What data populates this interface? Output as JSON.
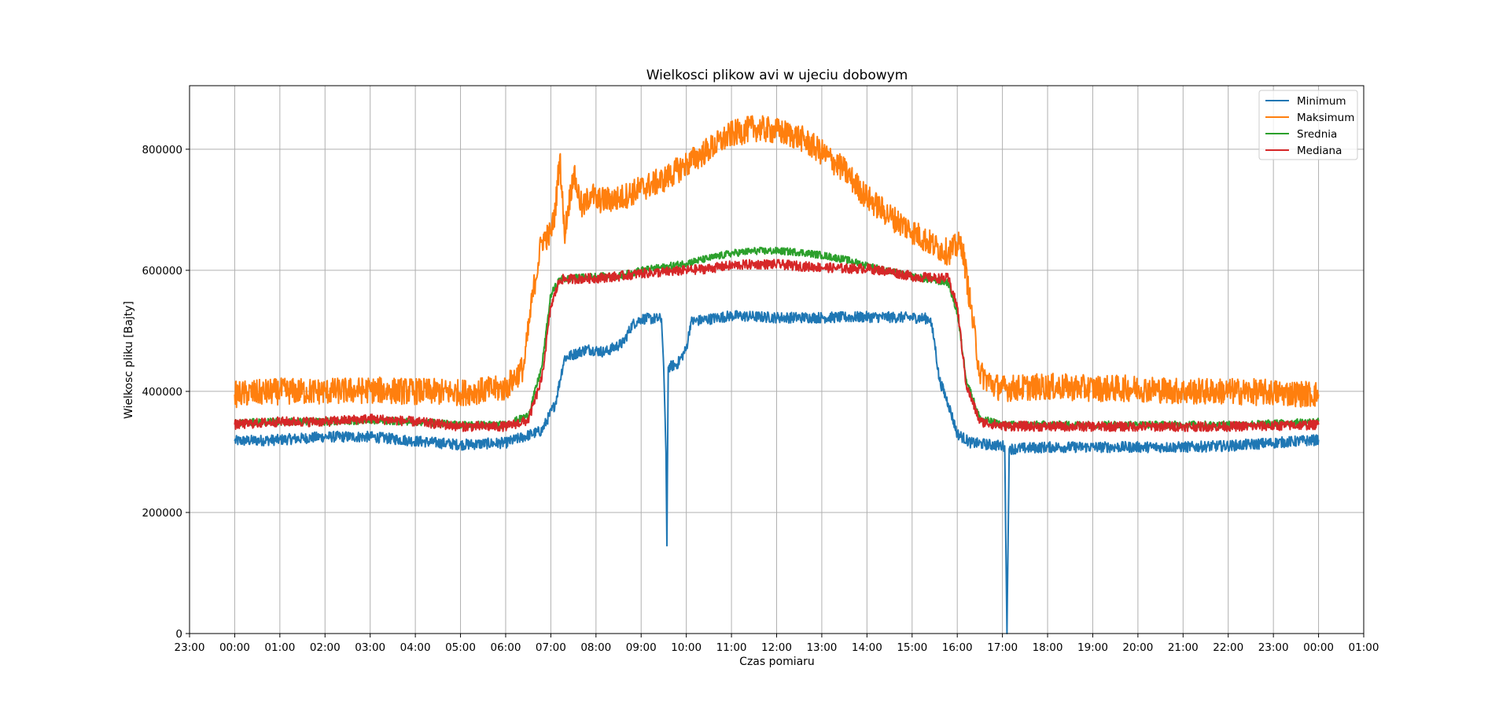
{
  "chart_data": {
    "type": "line",
    "title": "Wielkosci plikow avi w ujeciu dobowym",
    "xlabel": "Czas pomiaru",
    "ylabel": "Wielkosc pliku [Bajty]",
    "x_unit": "hours since 00:00",
    "xlim": [
      -1,
      25
    ],
    "ylim": [
      0,
      905000
    ],
    "grid": true,
    "legend_position": "top-right",
    "x_ticks": [
      {
        "value": -1,
        "label": "23:00"
      },
      {
        "value": 0,
        "label": "00:00"
      },
      {
        "value": 1,
        "label": "01:00"
      },
      {
        "value": 2,
        "label": "02:00"
      },
      {
        "value": 3,
        "label": "03:00"
      },
      {
        "value": 4,
        "label": "04:00"
      },
      {
        "value": 5,
        "label": "05:00"
      },
      {
        "value": 6,
        "label": "06:00"
      },
      {
        "value": 7,
        "label": "07:00"
      },
      {
        "value": 8,
        "label": "08:00"
      },
      {
        "value": 9,
        "label": "09:00"
      },
      {
        "value": 10,
        "label": "10:00"
      },
      {
        "value": 11,
        "label": "11:00"
      },
      {
        "value": 12,
        "label": "12:00"
      },
      {
        "value": 13,
        "label": "13:00"
      },
      {
        "value": 14,
        "label": "14:00"
      },
      {
        "value": 15,
        "label": "15:00"
      },
      {
        "value": 16,
        "label": "16:00"
      },
      {
        "value": 17,
        "label": "17:00"
      },
      {
        "value": 18,
        "label": "18:00"
      },
      {
        "value": 19,
        "label": "19:00"
      },
      {
        "value": 20,
        "label": "20:00"
      },
      {
        "value": 21,
        "label": "21:00"
      },
      {
        "value": 22,
        "label": "22:00"
      },
      {
        "value": 23,
        "label": "23:00"
      },
      {
        "value": 24,
        "label": "00:00"
      },
      {
        "value": 25,
        "label": "01:00"
      }
    ],
    "y_ticks": [
      {
        "value": 0,
        "label": "0"
      },
      {
        "value": 200000,
        "label": "200000"
      },
      {
        "value": 400000,
        "label": "400000"
      },
      {
        "value": 600000,
        "label": "600000"
      },
      {
        "value": 800000,
        "label": "800000"
      }
    ],
    "series": [
      {
        "name": "Minimum",
        "color": "#1f77b4",
        "noise": 9000,
        "points": [
          [
            0,
            318000
          ],
          [
            1,
            320000
          ],
          [
            2,
            325000
          ],
          [
            3,
            325000
          ],
          [
            4,
            318000
          ],
          [
            5,
            312000
          ],
          [
            6,
            315000
          ],
          [
            6.8,
            335000
          ],
          [
            7.1,
            380000
          ],
          [
            7.3,
            455000
          ],
          [
            7.8,
            470000
          ],
          [
            8.2,
            465000
          ],
          [
            8.6,
            480000
          ],
          [
            8.8,
            510000
          ],
          [
            9.0,
            520000
          ],
          [
            9.45,
            520000
          ],
          [
            9.5,
            440000
          ],
          [
            9.55,
            300000
          ],
          [
            9.57,
            145000
          ],
          [
            9.6,
            440000
          ],
          [
            9.8,
            445000
          ],
          [
            10.0,
            470000
          ],
          [
            10.1,
            515000
          ],
          [
            11,
            525000
          ],
          [
            12,
            522000
          ],
          [
            13,
            522000
          ],
          [
            14,
            523000
          ],
          [
            15,
            522000
          ],
          [
            15.4,
            520000
          ],
          [
            15.5,
            480000
          ],
          [
            15.6,
            420000
          ],
          [
            15.8,
            380000
          ],
          [
            16.0,
            330000
          ],
          [
            16.3,
            315000
          ],
          [
            17.0,
            310000
          ],
          [
            17.05,
            310000
          ],
          [
            17.1,
            0
          ],
          [
            17.15,
            305000
          ],
          [
            18,
            308000
          ],
          [
            19,
            308000
          ],
          [
            20,
            308000
          ],
          [
            21,
            308000
          ],
          [
            22,
            310000
          ],
          [
            23,
            315000
          ],
          [
            24,
            320000
          ]
        ]
      },
      {
        "name": "Maksimum",
        "color": "#ff7f0e",
        "noise": 22000,
        "points": [
          [
            0,
            395000
          ],
          [
            1,
            400000
          ],
          [
            2,
            400000
          ],
          [
            3,
            402000
          ],
          [
            4,
            400000
          ],
          [
            5,
            398000
          ],
          [
            6,
            405000
          ],
          [
            6.4,
            440000
          ],
          [
            6.6,
            560000
          ],
          [
            6.8,
            650000
          ],
          [
            7.0,
            660000
          ],
          [
            7.1,
            700000
          ],
          [
            7.2,
            790000
          ],
          [
            7.3,
            660000
          ],
          [
            7.5,
            760000
          ],
          [
            7.7,
            700000
          ],
          [
            7.9,
            730000
          ],
          [
            8.0,
            715000
          ],
          [
            8.5,
            718000
          ],
          [
            9.0,
            735000
          ],
          [
            9.5,
            750000
          ],
          [
            10,
            775000
          ],
          [
            10.5,
            800000
          ],
          [
            11,
            825000
          ],
          [
            11.5,
            835000
          ],
          [
            12,
            830000
          ],
          [
            12.5,
            820000
          ],
          [
            13,
            795000
          ],
          [
            13.5,
            765000
          ],
          [
            14,
            720000
          ],
          [
            14.5,
            690000
          ],
          [
            15,
            665000
          ],
          [
            15.5,
            640000
          ],
          [
            15.8,
            630000
          ],
          [
            16.1,
            645000
          ],
          [
            16.3,
            540000
          ],
          [
            16.5,
            430000
          ],
          [
            16.8,
            410000
          ],
          [
            17,
            405000
          ],
          [
            18,
            408000
          ],
          [
            19,
            405000
          ],
          [
            20,
            405000
          ],
          [
            21,
            400000
          ],
          [
            22,
            400000
          ],
          [
            23,
            398000
          ],
          [
            24,
            395000
          ]
        ]
      },
      {
        "name": "Srednia",
        "color": "#2ca02c",
        "noise": 6000,
        "points": [
          [
            0,
            348000
          ],
          [
            1,
            350000
          ],
          [
            2,
            350000
          ],
          [
            3,
            352000
          ],
          [
            4,
            350000
          ],
          [
            5,
            345000
          ],
          [
            6,
            345000
          ],
          [
            6.5,
            360000
          ],
          [
            6.8,
            440000
          ],
          [
            7.0,
            560000
          ],
          [
            7.2,
            585000
          ],
          [
            8,
            590000
          ],
          [
            8.5,
            590000
          ],
          [
            9,
            600000
          ],
          [
            9.5,
            605000
          ],
          [
            10,
            612000
          ],
          [
            10.5,
            620000
          ],
          [
            11,
            628000
          ],
          [
            11.5,
            632000
          ],
          [
            12,
            632000
          ],
          [
            12.5,
            630000
          ],
          [
            13,
            625000
          ],
          [
            13.5,
            618000
          ],
          [
            14,
            608000
          ],
          [
            14.5,
            598000
          ],
          [
            15,
            590000
          ],
          [
            15.5,
            583000
          ],
          [
            15.8,
            580000
          ],
          [
            16.0,
            530000
          ],
          [
            16.2,
            420000
          ],
          [
            16.5,
            355000
          ],
          [
            17,
            345000
          ],
          [
            18,
            345000
          ],
          [
            19,
            345000
          ],
          [
            20,
            345000
          ],
          [
            21,
            345000
          ],
          [
            22,
            345000
          ],
          [
            23,
            347000
          ],
          [
            24,
            350000
          ]
        ]
      },
      {
        "name": "Mediana",
        "color": "#d62728",
        "noise": 8000,
        "points": [
          [
            0,
            345000
          ],
          [
            1,
            350000
          ],
          [
            2,
            350000
          ],
          [
            3,
            355000
          ],
          [
            4,
            350000
          ],
          [
            5,
            342000
          ],
          [
            6,
            342000
          ],
          [
            6.5,
            352000
          ],
          [
            6.8,
            420000
          ],
          [
            7.0,
            540000
          ],
          [
            7.2,
            585000
          ],
          [
            8,
            587000
          ],
          [
            8.5,
            590000
          ],
          [
            9,
            595000
          ],
          [
            9.5,
            597000
          ],
          [
            10,
            600000
          ],
          [
            10.5,
            603000
          ],
          [
            11,
            608000
          ],
          [
            11.5,
            610000
          ],
          [
            12,
            610000
          ],
          [
            12.5,
            607000
          ],
          [
            13,
            605000
          ],
          [
            13.5,
            603000
          ],
          [
            14,
            603000
          ],
          [
            14.5,
            598000
          ],
          [
            15,
            590000
          ],
          [
            15.5,
            587000
          ],
          [
            15.8,
            587000
          ],
          [
            16.0,
            540000
          ],
          [
            16.2,
            410000
          ],
          [
            16.5,
            350000
          ],
          [
            17,
            343000
          ],
          [
            18,
            342000
          ],
          [
            19,
            342000
          ],
          [
            20,
            342000
          ],
          [
            21,
            342000
          ],
          [
            22,
            342000
          ],
          [
            23,
            343000
          ],
          [
            24,
            345000
          ]
        ]
      }
    ]
  }
}
